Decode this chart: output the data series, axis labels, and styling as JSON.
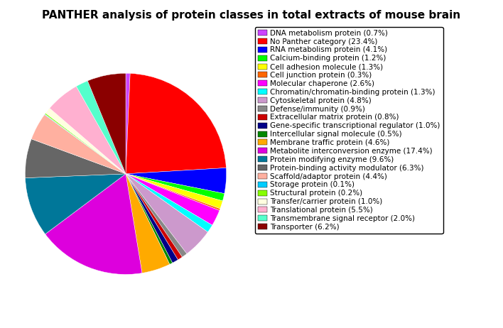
{
  "title": "PANTHER analysis of protein classes in total extracts of mouse brain",
  "categories": [
    "DNA metabolism protein (0.7%)",
    "No Panther category (23.4%)",
    "RNA metabolism protein (4.1%)",
    "Calcium-binding protein (1.2%)",
    "Cell adhesion molecule (1.3%)",
    "Cell junction protein (0.3%)",
    "Molecular chaperone (2.6%)",
    "Chromatin/chromatin-binding protein (1.3%)",
    "Cytoskeletal protein (4.8%)",
    "Defense/immunity (0.9%)",
    "Extracellular matrix protein (0.8%)",
    "Gene-specific transcriptional regulator (1.0%)",
    "Intercellular signal molecule (0.5%)",
    "Membrane traffic protein (4.6%)",
    "Metabolite interconversion enzyme (17.4%)",
    "Protein modifying enzyme (9.6%)",
    "Protein-binding activity modulator (6.3%)",
    "Scaffold/adaptor protein (4.4%)",
    "Storage protein (0.1%)",
    "Structural protein (0.2%)",
    "Transfer/carrier protein (1.0%)",
    "Translational protein (5.5%)",
    "Transmembrane signal receptor (2.0%)",
    "Transporter (6.2%)"
  ],
  "values": [
    0.7,
    23.4,
    4.1,
    1.2,
    1.3,
    0.3,
    2.6,
    1.3,
    4.8,
    0.9,
    0.8,
    1.0,
    0.5,
    4.6,
    17.4,
    9.6,
    6.3,
    4.4,
    0.1,
    0.2,
    1.0,
    5.5,
    2.0,
    6.2
  ],
  "colors": [
    "#CC44FF",
    "#FF0000",
    "#0000FF",
    "#00FF00",
    "#FFFF00",
    "#FF6600",
    "#FF00FF",
    "#00FFFF",
    "#CC99CC",
    "#888888",
    "#CC0000",
    "#000088",
    "#008800",
    "#FFAA00",
    "#DD00DD",
    "#007799",
    "#666666",
    "#FFB0A0",
    "#00CCFF",
    "#88FF00",
    "#FFFFE0",
    "#FFB0D0",
    "#55FFCC",
    "#8B0000"
  ],
  "figsize": [
    7.08,
    4.62
  ],
  "dpi": 100,
  "title_fontsize": 11,
  "legend_fontsize": 7.5
}
